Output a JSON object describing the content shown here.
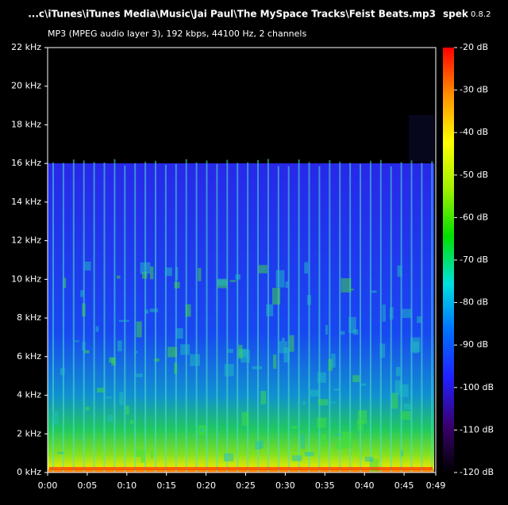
{
  "chart_data": {
    "type": "spectrogram",
    "title": "...c\\iTunes\\iTunes Media\\Music\\Jai Paul\\The MySpace Tracks\\Feist Beats.mp3",
    "app_name": "spek",
    "app_version": "0.8.2",
    "subtitle": "MP3 (MPEG audio layer 3), 192 kbps, 44100 Hz, 2 channels",
    "xlim": [
      0,
      49
    ],
    "xticks": [
      {
        "value": 0,
        "label": "0:00"
      },
      {
        "value": 5,
        "label": "0:05"
      },
      {
        "value": 10,
        "label": "0:10"
      },
      {
        "value": 15,
        "label": "0:15"
      },
      {
        "value": 20,
        "label": "0:20"
      },
      {
        "value": 25,
        "label": "0:25"
      },
      {
        "value": 30,
        "label": "0:30"
      },
      {
        "value": 35,
        "label": "0:35"
      },
      {
        "value": 40,
        "label": "0:40"
      },
      {
        "value": 45,
        "label": "0:45"
      },
      {
        "value": 49,
        "label": "0:49"
      }
    ],
    "ylim": [
      0,
      22
    ],
    "yticks": [
      {
        "value": 0,
        "label": "0 kHz"
      },
      {
        "value": 2,
        "label": "2 kHz"
      },
      {
        "value": 4,
        "label": "4 kHz"
      },
      {
        "value": 6,
        "label": "6 kHz"
      },
      {
        "value": 8,
        "label": "8 kHz"
      },
      {
        "value": 10,
        "label": "10 kHz"
      },
      {
        "value": 12,
        "label": "12 kHz"
      },
      {
        "value": 14,
        "label": "14 kHz"
      },
      {
        "value": 16,
        "label": "16 kHz"
      },
      {
        "value": 18,
        "label": "18 kHz"
      },
      {
        "value": 20,
        "label": "20 kHz"
      },
      {
        "value": 22,
        "label": "22 kHz"
      }
    ],
    "zlim": [
      -120,
      -20
    ],
    "zticks": [
      {
        "value": -20,
        "label": "-20 dB"
      },
      {
        "value": -30,
        "label": "-30 dB"
      },
      {
        "value": -40,
        "label": "-40 dB"
      },
      {
        "value": -50,
        "label": "-50 dB"
      },
      {
        "value": -60,
        "label": "-60 dB"
      },
      {
        "value": -70,
        "label": "-70 dB"
      },
      {
        "value": -80,
        "label": "-80 dB"
      },
      {
        "value": -90,
        "label": "-90 dB"
      },
      {
        "value": -100,
        "label": "-100 dB"
      },
      {
        "value": -110,
        "label": "-110 dB"
      },
      {
        "value": -120,
        "label": "-120 dB"
      }
    ],
    "colorscale": [
      "#000000",
      "#3a0070",
      "#2020ff",
      "#0070ff",
      "#00e0e0",
      "#00e000",
      "#a0f000",
      "#ffff00",
      "#ff9000",
      "#ff0000"
    ]
  }
}
